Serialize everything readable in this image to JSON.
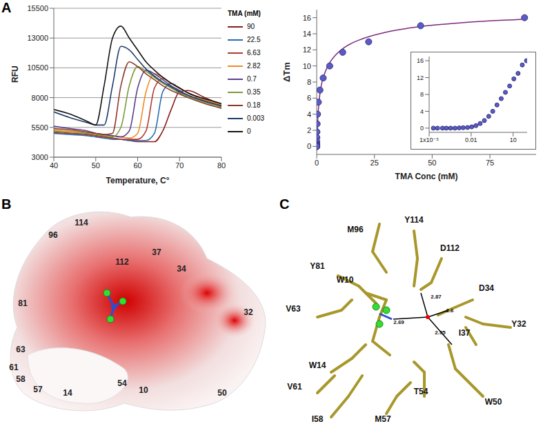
{
  "panel_labels": [
    "A",
    "B",
    "C"
  ],
  "chart_data": [
    {
      "type": "line",
      "y_label": "RFU",
      "x_label": "Temperature, C°",
      "legend_title": "TMA (mM)",
      "legend": "right",
      "grid": true,
      "x": [
        40,
        44,
        48,
        50,
        52,
        54,
        56,
        58,
        60,
        62,
        64,
        66,
        68,
        70,
        72,
        76,
        80
      ],
      "xlim": [
        40,
        80
      ],
      "xticks": [
        40,
        50,
        60,
        70,
        80
      ],
      "ylim": [
        3000,
        15500
      ],
      "yticks": [
        3000,
        5500,
        8000,
        10500,
        13000,
        15500
      ],
      "series": [
        {
          "name": "90",
          "color": "#8b1a1a",
          "values": [
            5100,
            5000,
            4900,
            4800,
            4700,
            4600,
            4500,
            4400,
            4300,
            4300,
            4300,
            5200,
            7000,
            8500,
            8600,
            8000,
            7400
          ]
        },
        {
          "name": "22.5",
          "color": "#2a6bb0",
          "values": [
            5000,
            4900,
            4800,
            4700,
            4600,
            4500,
            4500,
            4400,
            4400,
            4400,
            5000,
            8500,
            9200,
            8800,
            8400,
            7800,
            7300
          ]
        },
        {
          "name": "6.63",
          "color": "#b03a2e",
          "values": [
            5100,
            5000,
            4900,
            4800,
            4700,
            4600,
            4500,
            4500,
            4500,
            5200,
            8800,
            9600,
            9200,
            8800,
            8400,
            7800,
            7400
          ]
        },
        {
          "name": "2.82",
          "color": "#f08a24",
          "values": [
            5300,
            5200,
            5100,
            5000,
            4900,
            4800,
            4700,
            4600,
            5000,
            8500,
            10000,
            9700,
            9200,
            8800,
            8400,
            7800,
            7400
          ]
        },
        {
          "name": "0.7",
          "color": "#5b3f8c",
          "values": [
            5600,
            5400,
            5200,
            5000,
            4900,
            4800,
            4700,
            5200,
            8800,
            10300,
            10000,
            9500,
            9000,
            8600,
            8200,
            7700,
            7300
          ]
        },
        {
          "name": "0.35",
          "color": "#7a9a3a",
          "values": [
            5200,
            5100,
            5000,
            4900,
            4800,
            4700,
            5500,
            9000,
            10600,
            10200,
            9700,
            9200,
            8800,
            8400,
            8100,
            7600,
            7200
          ]
        },
        {
          "name": "0.18",
          "color": "#8b3a2a",
          "values": [
            5400,
            5300,
            5100,
            5000,
            4900,
            5000,
            9000,
            11000,
            10600,
            10000,
            9500,
            9000,
            8600,
            8300,
            8000,
            7500,
            7100
          ]
        },
        {
          "name": "0.003",
          "color": "#1f3a6b",
          "values": [
            6800,
            6300,
            5900,
            5700,
            5700,
            9000,
            12300,
            12000,
            11200,
            10400,
            9800,
            9300,
            8900,
            8500,
            8200,
            7700,
            7300
          ]
        },
        {
          "name": "0",
          "color": "#111111",
          "values": [
            7000,
            6600,
            6000,
            5700,
            9000,
            13000,
            14000,
            13000,
            12000,
            11000,
            10300,
            9700,
            9200,
            8800,
            8400,
            7900,
            7500
          ]
        }
      ]
    },
    {
      "type": "scatter",
      "y_label": "ΔTm",
      "x_label": "TMA Conc (mM)",
      "color": "#5b5bc8",
      "x": [
        90,
        45,
        22.5,
        11.25,
        5.63,
        2.81,
        1.41,
        0.7,
        0.35,
        0.18,
        0.088,
        0.044,
        0.022,
        0.011,
        0.0055,
        0.0027,
        0.0014,
        0.0007,
        0.00034,
        0.00017,
        9e-05,
        4e-05,
        2e-05
      ],
      "values": [
        16,
        15,
        13,
        11.7,
        10,
        8.5,
        7,
        5.5,
        4,
        2.8,
        1.8,
        1.1,
        0.6,
        0.3,
        0.15,
        0.1,
        0.05,
        0,
        0,
        0,
        0,
        0,
        0
      ],
      "fit": {
        "color": "#7b2a7b",
        "x": [
          0,
          0.5,
          1,
          2,
          3,
          5,
          8,
          12,
          20,
          30,
          45,
          60,
          75,
          90
        ],
        "values": [
          0,
          3.5,
          5.5,
          7.6,
          8.7,
          10.1,
          11.3,
          12.3,
          13.4,
          14.2,
          14.9,
          15.3,
          15.6,
          15.8
        ]
      },
      "xlim": [
        0,
        95
      ],
      "xticks": [
        0,
        25,
        50,
        75
      ],
      "ylim": [
        -1,
        17
      ],
      "yticks": [
        0,
        2,
        4,
        6,
        8,
        10,
        12,
        14,
        16
      ],
      "inset": {
        "log": "x",
        "xlim": [
          1e-05,
          100
        ],
        "xticks": [
          {
            "value": 1e-05,
            "label": "1x10⁻⁵"
          },
          0.01,
          10
        ],
        "ylim": [
          -1,
          17
        ],
        "yticks": [
          0,
          4,
          8,
          12,
          16
        ]
      }
    }
  ],
  "surface": {
    "labels": [
      114,
      96,
      37,
      112,
      34,
      81,
      32,
      63,
      61,
      58,
      57,
      14,
      54,
      10,
      50
    ]
  },
  "structure": {
    "residues": [
      "M96",
      "Y114",
      "D112",
      "Y81",
      "W10",
      "D34",
      "V63",
      "Y32",
      "I37",
      "W14",
      "V61",
      "W50",
      "T54",
      "I58",
      "M57"
    ],
    "distances": [
      2.69,
      2.87,
      2.6,
      2.95
    ]
  }
}
